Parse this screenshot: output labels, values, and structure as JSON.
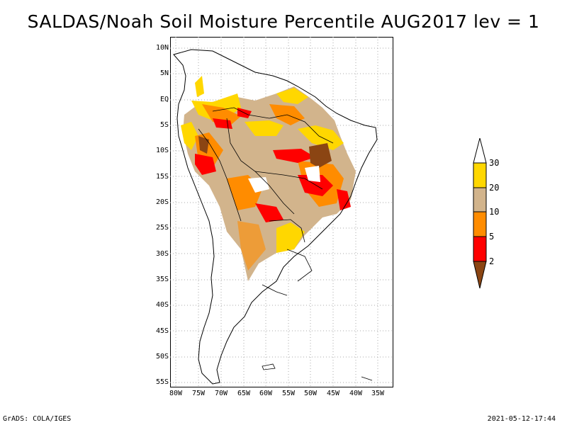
{
  "title": "SALDAS/Noah Soil Moisture Percentile AUG2017 lev = 1",
  "latitude_labels": [
    "10N",
    "5N",
    "EQ",
    "5S",
    "10S",
    "15S",
    "20S",
    "25S",
    "30S",
    "35S",
    "40S",
    "45S",
    "50S",
    "55S"
  ],
  "longitude_labels": [
    "80W",
    "75W",
    "70W",
    "65W",
    "60W",
    "55W",
    "50W",
    "45W",
    "40W",
    "35W"
  ],
  "legend": {
    "labels": [
      "30",
      "20",
      "10",
      "5",
      "2"
    ],
    "colors": [
      "#ffffff",
      "#ffd700",
      "#d2b48c",
      "#ff8c00",
      "#ff0000",
      "#8b4513"
    ]
  },
  "footer": {
    "left": "GrADS: COLA/IGES",
    "right": "2021-05-12-17:44"
  }
}
